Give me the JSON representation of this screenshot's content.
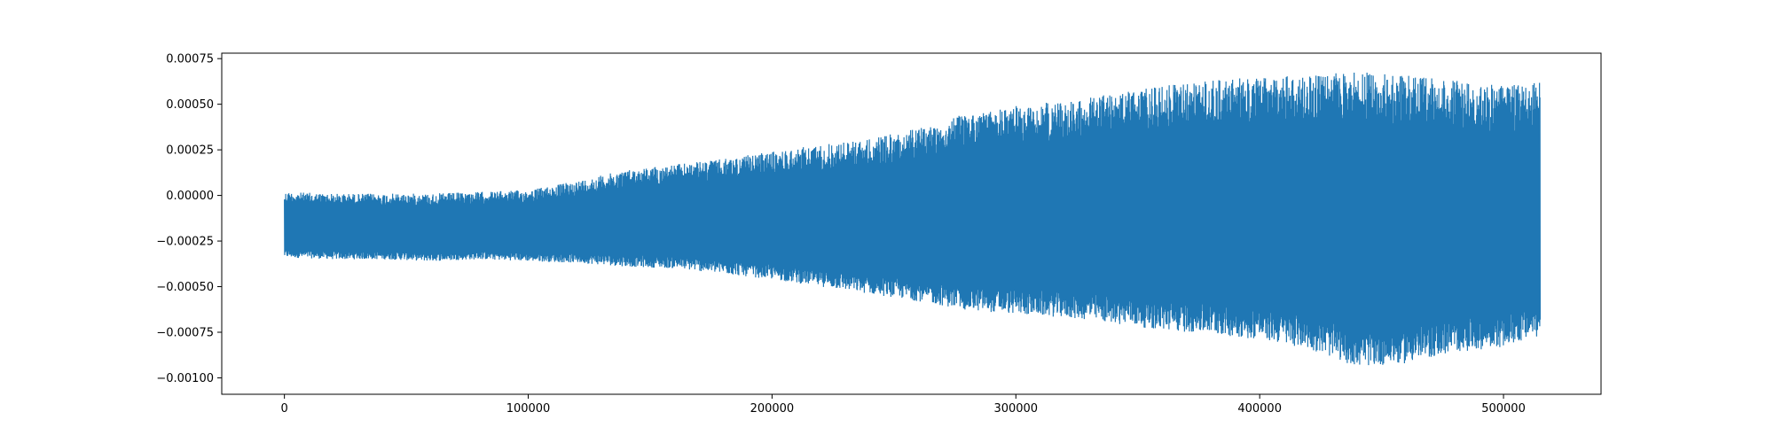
{
  "chart_data": {
    "type": "line",
    "title": "",
    "xlabel": "",
    "ylabel": "",
    "grid": false,
    "xlim": [
      -25700,
      540000
    ],
    "ylim": [
      -0.00109,
      0.00078
    ],
    "xticks": [
      0,
      100000,
      200000,
      300000,
      400000,
      500000
    ],
    "xtick_labels": [
      "0",
      "100000",
      "200000",
      "300000",
      "400000",
      "500000"
    ],
    "yticks": [
      0.00075,
      0.0005,
      0.00025,
      0.0,
      -0.00025,
      -0.0005,
      -0.00075,
      -0.001
    ],
    "ytick_labels": [
      "0.00075",
      "0.00050",
      "0.00025",
      "0.00000",
      "−0.00025",
      "−0.00050",
      "−0.00075",
      "−0.00100"
    ],
    "series": [
      {
        "color": "#1f77b4",
        "x_range": [
          0,
          515000
        ],
        "envelope_x": [
          0,
          20000,
          40000,
          60000,
          80000,
          100000,
          120000,
          140000,
          160000,
          180000,
          200000,
          220000,
          240000,
          260000,
          280000,
          300000,
          320000,
          340000,
          360000,
          380000,
          400000,
          420000,
          440000,
          460000,
          480000,
          500000,
          515000
        ],
        "envelope_max": [
          2e-05,
          1e-05,
          1e-05,
          1e-05,
          2e-05,
          3e-05,
          8e-05,
          0.00014,
          0.00017,
          0.0002,
          0.00024,
          0.00028,
          0.00031,
          0.00037,
          0.00045,
          0.00049,
          0.00052,
          0.00056,
          0.0006,
          0.00063,
          0.00065,
          0.00066,
          0.00068,
          0.00066,
          0.00063,
          0.0006,
          0.00062
        ],
        "envelope_min": [
          -0.00034,
          -0.00035,
          -0.00035,
          -0.00036,
          -0.00035,
          -0.00036,
          -0.00037,
          -0.00039,
          -0.0004,
          -0.00043,
          -0.00046,
          -0.0005,
          -0.00054,
          -0.00058,
          -0.00063,
          -0.00065,
          -0.00067,
          -0.0007,
          -0.00074,
          -0.00076,
          -0.00079,
          -0.00084,
          -0.00094,
          -0.00092,
          -0.00086,
          -0.00083,
          -0.00077
        ]
      }
    ]
  }
}
